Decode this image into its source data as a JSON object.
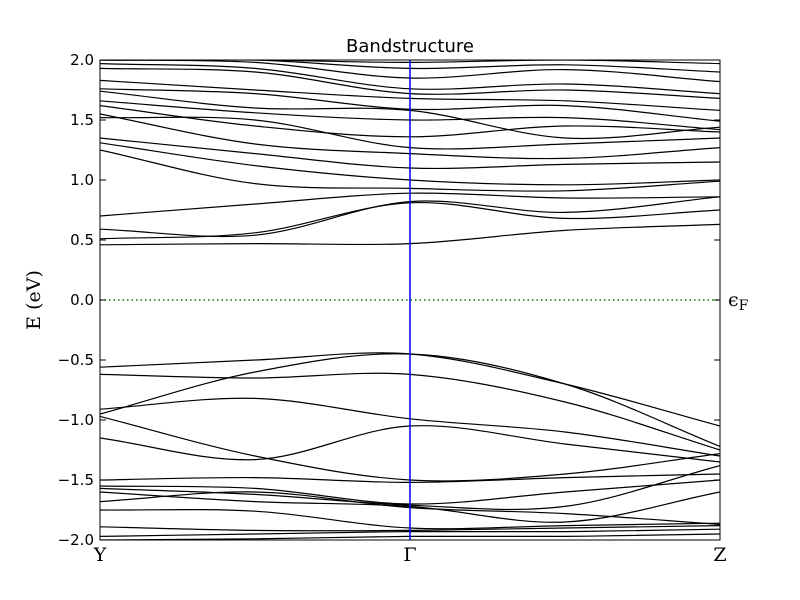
{
  "chart_data": {
    "type": "line",
    "title": "Bandstructure",
    "ylabel": "E (eV)",
    "xlabel": "",
    "ylim": [
      -2.0,
      2.0
    ],
    "y_ticks": [
      {
        "value": 2.0,
        "label": "2.0"
      },
      {
        "value": 1.5,
        "label": "1.5"
      },
      {
        "value": 1.0,
        "label": "1.0"
      },
      {
        "value": 0.5,
        "label": "0.5"
      },
      {
        "value": 0.0,
        "label": "0.0"
      },
      {
        "value": -0.5,
        "label": "−0.5"
      },
      {
        "value": -1.0,
        "label": "−1.0"
      },
      {
        "value": -1.5,
        "label": "−1.5"
      },
      {
        "value": -2.0,
        "label": "−2.0"
      }
    ],
    "k_path": [
      {
        "label": "Y",
        "pos": 0.0
      },
      {
        "label": "Γ",
        "pos": 0.5
      },
      {
        "label": "Z",
        "pos": 1.0
      }
    ],
    "fermi_level": {
      "value": 0.0,
      "label": "ϵF",
      "color": "#007f00"
    },
    "gamma_line_color": "#0000ff",
    "band_color": "#000000",
    "grid": false,
    "series": [
      {
        "x": [
          0,
          0.25,
          0.5,
          0.75,
          1.0
        ],
        "values": [
          0.46,
          0.47,
          0.47,
          0.58,
          0.63
        ]
      },
      {
        "x": [
          0,
          0.25,
          0.5,
          0.75,
          1.0
        ],
        "values": [
          0.51,
          0.56,
          0.81,
          0.68,
          0.75
        ]
      },
      {
        "x": [
          0,
          0.25,
          0.5,
          0.75,
          1.0
        ],
        "values": [
          0.59,
          0.54,
          0.82,
          0.73,
          0.86
        ]
      },
      {
        "x": [
          0,
          0.25,
          0.5,
          0.75,
          1.0
        ],
        "values": [
          0.7,
          0.8,
          0.89,
          0.85,
          0.86
        ]
      },
      {
        "x": [
          0,
          0.25,
          0.5,
          0.75,
          1.0
        ],
        "values": [
          1.25,
          0.97,
          0.93,
          0.91,
          0.99
        ]
      },
      {
        "x": [
          0,
          0.25,
          0.5,
          0.75,
          1.0
        ],
        "values": [
          1.31,
          1.12,
          1.0,
          0.96,
          1.0
        ]
      },
      {
        "x": [
          0,
          0.25,
          0.5,
          0.75,
          1.0
        ],
        "values": [
          1.35,
          1.22,
          1.1,
          1.13,
          1.15
        ]
      },
      {
        "x": [
          0,
          0.25,
          0.5,
          0.75,
          1.0
        ],
        "values": [
          1.55,
          1.3,
          1.22,
          1.18,
          1.27
        ]
      },
      {
        "x": [
          0,
          0.25,
          0.5,
          0.75,
          1.0
        ],
        "values": [
          1.52,
          1.5,
          1.27,
          1.3,
          1.35
        ]
      },
      {
        "x": [
          0,
          0.25,
          0.5,
          0.75,
          1.0
        ],
        "values": [
          1.62,
          1.45,
          1.36,
          1.45,
          1.4
        ]
      },
      {
        "x": [
          0,
          0.25,
          0.5,
          0.75,
          1.0
        ],
        "values": [
          1.66,
          1.56,
          1.5,
          1.52,
          1.42
        ]
      },
      {
        "x": [
          0,
          0.25,
          0.5,
          0.75,
          1.0
        ],
        "values": [
          1.74,
          1.6,
          1.58,
          1.35,
          1.44
        ]
      },
      {
        "x": [
          0,
          0.25,
          0.5,
          0.75,
          1.0
        ],
        "values": [
          1.76,
          1.72,
          1.59,
          1.62,
          1.49
        ]
      },
      {
        "x": [
          0,
          0.25,
          0.5,
          0.75,
          1.0
        ],
        "values": [
          1.83,
          1.75,
          1.68,
          1.66,
          1.58
        ]
      },
      {
        "x": [
          0,
          0.25,
          0.5,
          0.75,
          1.0
        ],
        "values": [
          1.93,
          1.9,
          1.72,
          1.75,
          1.68
        ]
      },
      {
        "x": [
          0,
          0.25,
          0.5,
          0.75,
          1.0
        ],
        "values": [
          1.97,
          1.93,
          1.76,
          1.8,
          1.72
        ]
      },
      {
        "x": [
          0,
          0.25,
          0.5,
          0.75,
          1.0
        ],
        "values": [
          2.0,
          1.98,
          1.85,
          1.92,
          1.82
        ]
      },
      {
        "x": [
          0,
          0.25,
          0.5,
          0.75,
          1.0
        ],
        "values": [
          2.0,
          2.0,
          1.93,
          1.96,
          1.9
        ]
      },
      {
        "x": [
          0,
          0.25,
          0.5,
          0.75,
          1.0
        ],
        "values": [
          2.0,
          2.0,
          1.98,
          2.0,
          1.97
        ]
      },
      {
        "x": [
          0,
          0.25,
          0.5,
          0.75,
          1.0
        ],
        "values": [
          -0.56,
          -0.5,
          -0.45,
          -0.7,
          -1.05
        ]
      },
      {
        "x": [
          0,
          0.25,
          0.5,
          0.75,
          1.0
        ],
        "values": [
          -0.62,
          -0.65,
          -0.62,
          -0.85,
          -1.25
        ]
      },
      {
        "x": [
          0,
          0.25,
          0.5,
          0.75,
          1.0
        ],
        "values": [
          -0.95,
          -0.6,
          -0.45,
          -0.7,
          -1.22
        ]
      },
      {
        "x": [
          0,
          0.25,
          0.5,
          0.75,
          1.0
        ],
        "values": [
          -0.91,
          -0.82,
          -0.99,
          -1.1,
          -1.3
        ]
      },
      {
        "x": [
          0,
          0.25,
          0.5,
          0.75,
          1.0
        ],
        "values": [
          -1.15,
          -1.33,
          -1.05,
          -1.2,
          -1.35
        ]
      },
      {
        "x": [
          0,
          0.25,
          0.5,
          0.75,
          1.0
        ],
        "values": [
          -0.97,
          -1.3,
          -1.5,
          -1.45,
          -1.28
        ]
      },
      {
        "x": [
          0,
          0.25,
          0.5,
          0.75,
          1.0
        ],
        "values": [
          -1.5,
          -1.48,
          -1.52,
          -1.48,
          -1.45
        ]
      },
      {
        "x": [
          0,
          0.25,
          0.5,
          0.75,
          1.0
        ],
        "values": [
          -1.55,
          -1.57,
          -1.7,
          -1.6,
          -1.5
        ]
      },
      {
        "x": [
          0,
          0.25,
          0.5,
          0.75,
          1.0
        ],
        "values": [
          -1.57,
          -1.62,
          -1.71,
          -1.72,
          -1.38
        ]
      },
      {
        "x": [
          0,
          0.25,
          0.5,
          0.75,
          1.0
        ],
        "values": [
          -1.6,
          -1.68,
          -1.72,
          -1.85,
          -1.6
        ]
      },
      {
        "x": [
          0,
          0.25,
          0.5,
          0.75,
          1.0
        ],
        "values": [
          -1.68,
          -1.6,
          -1.73,
          -1.78,
          -1.87
        ]
      },
      {
        "x": [
          0,
          0.25,
          0.5,
          0.75,
          1.0
        ],
        "values": [
          -1.75,
          -1.76,
          -1.9,
          -1.88,
          -1.86
        ]
      },
      {
        "x": [
          0,
          0.25,
          0.5,
          0.75,
          1.0
        ],
        "values": [
          -1.89,
          -1.92,
          -1.92,
          -1.9,
          -1.88
        ]
      },
      {
        "x": [
          0,
          0.25,
          0.5,
          0.75,
          1.0
        ],
        "values": [
          -1.97,
          -1.95,
          -1.93,
          -1.93,
          -1.91
        ]
      },
      {
        "x": [
          0,
          0.25,
          0.5,
          0.75,
          1.0
        ],
        "values": [
          -2.0,
          -1.99,
          -1.97,
          -1.97,
          -1.95
        ]
      }
    ]
  }
}
